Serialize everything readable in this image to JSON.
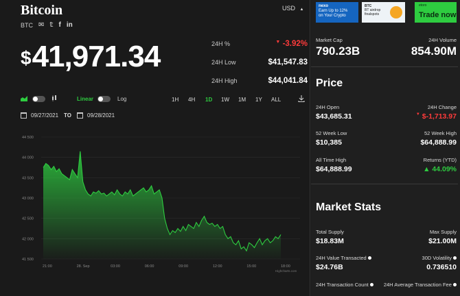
{
  "header": {
    "title": "Bitcoin",
    "ticker": "BTC",
    "currency": "USD",
    "currency_caret": "▲",
    "social_icons": [
      "mail-icon",
      "twitter-icon",
      "facebook-icon",
      "linkedin-icon"
    ]
  },
  "price": {
    "symbol": "$",
    "value": "41,971.34"
  },
  "stats": {
    "change_label": "24H %",
    "change_value": "-3.92%",
    "low_label": "24H Low",
    "low_value": "$41,547.83",
    "high_label": "24H High",
    "high_value": "$44,041.84"
  },
  "controls": {
    "linear_label": "Linear",
    "log_label": "Log",
    "ranges": [
      "1H",
      "4H",
      "1D",
      "1W",
      "1M",
      "1Y",
      "ALL"
    ],
    "active_range": "1D"
  },
  "dates": {
    "from": "09/27/2021",
    "to_label": "TO",
    "to": "09/28/2021"
  },
  "chart_data": {
    "type": "area",
    "title": "",
    "xlabel": "",
    "ylabel": "",
    "x_ticks": [
      "21:00",
      "28. Sep",
      "03:00",
      "06:00",
      "09:00",
      "12:00",
      "15:00",
      "18:00"
    ],
    "y_ticks": [
      41500,
      42000,
      42500,
      43000,
      43500,
      44000,
      44500
    ],
    "ylim": [
      41500,
      44500
    ],
    "series": [
      {
        "values": [
          43750,
          43850,
          43800,
          43700,
          43780,
          43650,
          43720,
          43600,
          43550,
          43500,
          43450,
          43700,
          43600,
          43500,
          44150,
          43400,
          43200,
          43100,
          43050,
          43150,
          43120,
          43180,
          43100,
          43120,
          43050,
          43100,
          43150,
          43080,
          43200,
          43100,
          43050,
          43150,
          43100,
          43200,
          43050,
          43100,
          43150,
          43200,
          43250,
          43150,
          43200,
          43300,
          43100,
          43150,
          43200,
          43000,
          42500,
          42250,
          42100,
          42200,
          42150,
          42250,
          42180,
          42300,
          42200,
          42350,
          42300,
          42250,
          42400,
          42300,
          42450,
          42550,
          42400,
          42350,
          42380,
          42300,
          42350,
          42250,
          42300,
          42100,
          42000,
          42050,
          41900,
          41850,
          41950,
          41750,
          41800,
          41700,
          41900,
          41850,
          41780,
          41900,
          42000,
          41850,
          41950,
          42000,
          41900,
          41950,
          42050,
          42000,
          42100
        ],
        "color": "#2ecc40"
      }
    ],
    "credit": "Highcharts.com",
    "grid": true
  },
  "market": {
    "cap_label": "Market Cap",
    "cap_value": "790.23B",
    "vol_label": "24H Volume",
    "vol_value": "854.90M"
  },
  "price_section": {
    "title": "Price",
    "open_label": "24H Open",
    "open_value": "$43,685.31",
    "change_label": "24H Change",
    "change_value": "$-1,713.97",
    "wlow_label": "52 Week Low",
    "wlow_value": "$10,385",
    "whigh_label": "52 Week High",
    "whigh_value": "$64,888.99",
    "ath_label": "All Time High",
    "ath_value": "$64,888.99",
    "ytd_label": "Returns (YTD)",
    "ytd_value": "▲ 44.09%"
  },
  "market_stats": {
    "title": "Market Stats",
    "supply_label": "Total Supply",
    "supply_value": "$18.83M",
    "max_label": "Max Supply",
    "max_value": "$21.00M",
    "transacted_label": "24H Value Transacted",
    "transacted_value": "$24.76B",
    "volatility_label": "30D Volatility",
    "volatility_value": "0.736510",
    "count_label": "24H Transaction Count",
    "avgfee_label": "24H Average Transaction Fee"
  },
  "ads": {
    "ad1_brand": "nexo",
    "ad1_line1": "Earn Up to 12%",
    "ad1_line2": "on Your Crypto",
    "ad2_line1": "BTC",
    "ad2_line2": "BT airdrop",
    "ad2_line3": "finalspots",
    "ad3_brand": "etoro",
    "ad3_cta": "Trade now"
  }
}
